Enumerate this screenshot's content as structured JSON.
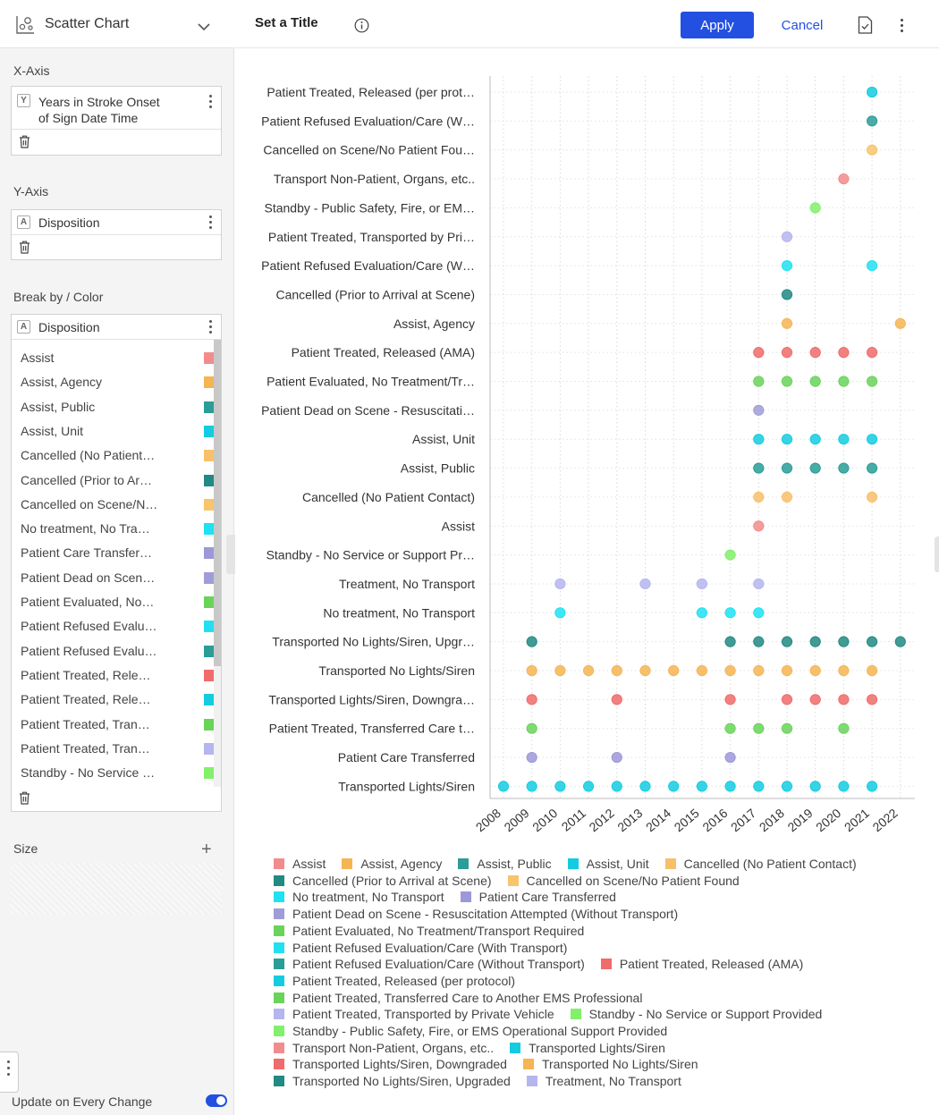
{
  "header": {
    "chart_type": "Scatter Chart",
    "title": "Set a Title",
    "apply_label": "Apply",
    "cancel_label": "Cancel"
  },
  "xaxis_section": {
    "label": "X-Axis",
    "field_line1": "Years in Stroke Onset",
    "field_line2": "of Sign Date Time",
    "badge": "Y"
  },
  "yaxis_section": {
    "label": "Y-Axis",
    "field": "Disposition",
    "badge": "A"
  },
  "color_section": {
    "label": "Break by / Color",
    "field": "Disposition",
    "badge": "A",
    "items": [
      {
        "label": "Assist",
        "color": "#f28c8c"
      },
      {
        "label": "Assist, Agency",
        "color": "#f5b553"
      },
      {
        "label": "Assist, Public",
        "color": "#2a9d97"
      },
      {
        "label": "Assist, Unit",
        "color": "#14cce0"
      },
      {
        "label": "Cancelled (No Patient…",
        "color": "#f8c06b"
      },
      {
        "label": "Cancelled (Prior to Ar…",
        "color": "#218a82"
      },
      {
        "label": "Cancelled on Scene/N…",
        "color": "#f8c46c"
      },
      {
        "label": "No treatment, No Tra…",
        "color": "#1ee2f2"
      },
      {
        "label": "Patient Care Transfer…",
        "color": "#9d98d8"
      },
      {
        "label": "Patient Dead on Scen…",
        "color": "#a09cd8"
      },
      {
        "label": "Patient Evaluated, No…",
        "color": "#6ad35a"
      },
      {
        "label": "Patient Refused Evalu…",
        "color": "#22e0f0"
      },
      {
        "label": "Patient Refused Evalu…",
        "color": "#2a9d97"
      },
      {
        "label": "Patient Treated, Rele…",
        "color": "#f06b6b"
      },
      {
        "label": "Patient Treated, Rele…",
        "color": "#14cce0"
      },
      {
        "label": "Patient Treated, Tran…",
        "color": "#6ad35a"
      },
      {
        "label": "Patient Treated, Tran…",
        "color": "#b5b5f0"
      },
      {
        "label": "Standby - No Service …",
        "color": "#82f06b"
      }
    ]
  },
  "size_section": {
    "label": "Size"
  },
  "footer": {
    "update_label": "Update on Every Change",
    "update_on": true
  },
  "chart_data": {
    "type": "scatter",
    "title": "",
    "xlabel": "",
    "ylabel": "",
    "x_ticks": [
      2008,
      2009,
      2010,
      2011,
      2012,
      2013,
      2014,
      2015,
      2016,
      2017,
      2018,
      2019,
      2020,
      2021,
      2022
    ],
    "xlim": [
      2008,
      2022
    ],
    "grid": "dotted",
    "legend_position": "bottom",
    "categories": [
      "Patient Treated, Released (per prot…",
      "Patient Refused Evaluation/Care (W…",
      "Cancelled on Scene/No Patient Fou…",
      "Transport Non-Patient, Organs, etc..",
      "Standby - Public Safety, Fire, or EM…",
      "Patient Treated, Transported by Pri…",
      "Patient Refused Evaluation/Care (W…",
      "Cancelled (Prior to Arrival at Scene)",
      "Assist, Agency",
      "Patient Treated, Released (AMA)",
      "Patient Evaluated, No Treatment/Tr…",
      "Patient Dead on Scene - Resuscitati…",
      "Assist, Unit",
      "Assist, Public",
      "Cancelled (No Patient Contact)",
      "Assist",
      "Standby - No Service or Support Pr…",
      "Treatment, No Transport",
      "No treatment, No Transport",
      "Transported No Lights/Siren, Upgr…",
      "Transported No Lights/Siren",
      "Transported Lights/Siren, Downgra…",
      "Patient Treated, Transferred Care t…",
      "Patient Care Transferred",
      "Transported Lights/Siren"
    ],
    "series": [
      {
        "name": "Patient Treated, Released (per protocol)",
        "color": "#14cce0",
        "points": [
          2021
        ]
      },
      {
        "name": "Patient Refused Evaluation/Care (Without Transport)",
        "color": "#2a9d97",
        "points": [
          2021
        ]
      },
      {
        "name": "Cancelled on Scene/No Patient Found",
        "color": "#f8c46c",
        "points": [
          2021
        ]
      },
      {
        "name": "Transport Non-Patient, Organs, etc..",
        "color": "#f28c8c",
        "points": [
          2020
        ]
      },
      {
        "name": "Standby - Public Safety, Fire, or EMS Operational Support Provided",
        "color": "#82f06b",
        "points": [
          2019
        ]
      },
      {
        "name": "Patient Treated, Transported by Private Vehicle",
        "color": "#b5b5f0",
        "points": [
          2018
        ]
      },
      {
        "name": "Patient Refused Evaluation/Care (With Transport)",
        "color": "#22e0f0",
        "points": [
          2018,
          2021
        ]
      },
      {
        "name": "Cancelled (Prior to Arrival at Scene)",
        "color": "#218a82",
        "points": [
          2018
        ]
      },
      {
        "name": "Assist, Agency",
        "color": "#f5b553",
        "points": [
          2018,
          2022
        ]
      },
      {
        "name": "Patient Treated, Released (AMA)",
        "color": "#f06b6b",
        "points": [
          2017,
          2018,
          2019,
          2020,
          2021
        ]
      },
      {
        "name": "Patient Evaluated, No Treatment/Transport Required",
        "color": "#6ad35a",
        "points": [
          2017,
          2018,
          2019,
          2020,
          2021
        ]
      },
      {
        "name": "Patient Dead on Scene - Resuscitation Attempted (Without Transport)",
        "color": "#a09cd8",
        "points": [
          2017
        ]
      },
      {
        "name": "Assist, Unit",
        "color": "#14cce0",
        "points": [
          2017,
          2018,
          2019,
          2020,
          2021
        ]
      },
      {
        "name": "Assist, Public",
        "color": "#2a9d97",
        "points": [
          2017,
          2018,
          2019,
          2020,
          2021
        ]
      },
      {
        "name": "Cancelled (No Patient Contact)",
        "color": "#f8c06b",
        "points": [
          2017,
          2018,
          2021
        ]
      },
      {
        "name": "Assist",
        "color": "#f28c8c",
        "points": [
          2017
        ]
      },
      {
        "name": "Standby - No Service or Support Provided",
        "color": "#82f06b",
        "points": [
          2016
        ]
      },
      {
        "name": "Treatment, No Transport",
        "color": "#b5b5f0",
        "points": [
          2010,
          2013,
          2015,
          2017
        ]
      },
      {
        "name": "No treatment, No Transport",
        "color": "#1ee2f2",
        "points": [
          2010,
          2015,
          2016,
          2017
        ]
      },
      {
        "name": "Transported No Lights/Siren, Upgraded",
        "color": "#218a82",
        "points": [
          2009,
          2016,
          2017,
          2018,
          2019,
          2020,
          2021,
          2022
        ]
      },
      {
        "name": "Transported No Lights/Siren",
        "color": "#f5b553",
        "points": [
          2009,
          2010,
          2011,
          2012,
          2013,
          2014,
          2015,
          2016,
          2017,
          2018,
          2019,
          2020,
          2021
        ]
      },
      {
        "name": "Transported Lights/Siren, Downgraded",
        "color": "#f06b6b",
        "points": [
          2009,
          2012,
          2016,
          2018,
          2019,
          2020,
          2021
        ]
      },
      {
        "name": "Patient Treated, Transferred Care to Another EMS Professional",
        "color": "#6ad35a",
        "points": [
          2009,
          2016,
          2017,
          2018,
          2020
        ]
      },
      {
        "name": "Patient Care Transferred",
        "color": "#9d98d8",
        "points": [
          2009,
          2012,
          2016
        ]
      },
      {
        "name": "Transported Lights/Siren",
        "color": "#14cce0",
        "points": [
          2008,
          2009,
          2010,
          2011,
          2012,
          2013,
          2014,
          2015,
          2016,
          2017,
          2018,
          2019,
          2020,
          2021
        ]
      }
    ],
    "legend": [
      [
        {
          "label": "Assist",
          "color": "#f28c8c"
        },
        {
          "label": "Assist, Agency",
          "color": "#f5b553"
        },
        {
          "label": "Assist, Public",
          "color": "#2a9d97"
        },
        {
          "label": "Assist, Unit",
          "color": "#14cce0"
        },
        {
          "label": "Cancelled (No Patient Contact)",
          "color": "#f8c06b"
        }
      ],
      [
        {
          "label": "Cancelled (Prior to Arrival at Scene)",
          "color": "#218a82"
        },
        {
          "label": "Cancelled on Scene/No Patient Found",
          "color": "#f8c46c"
        }
      ],
      [
        {
          "label": "No treatment, No Transport",
          "color": "#1ee2f2"
        },
        {
          "label": "Patient Care Transferred",
          "color": "#9d98d8"
        }
      ],
      [
        {
          "label": "Patient Dead on Scene - Resuscitation Attempted (Without Transport)",
          "color": "#a09cd8"
        }
      ],
      [
        {
          "label": "Patient Evaluated, No Treatment/Transport Required",
          "color": "#6ad35a"
        }
      ],
      [
        {
          "label": "Patient Refused Evaluation/Care (With Transport)",
          "color": "#22e0f0"
        }
      ],
      [
        {
          "label": "Patient Refused Evaluation/Care (Without Transport)",
          "color": "#2a9d97"
        },
        {
          "label": "Patient Treated, Released (AMA)",
          "color": "#f06b6b"
        }
      ],
      [
        {
          "label": "Patient Treated, Released (per protocol)",
          "color": "#14cce0"
        }
      ],
      [
        {
          "label": "Patient Treated, Transferred Care to Another EMS Professional",
          "color": "#6ad35a"
        }
      ],
      [
        {
          "label": "Patient Treated, Transported by Private Vehicle",
          "color": "#b5b5f0"
        },
        {
          "label": "Standby - No Service or Support Provided",
          "color": "#82f06b"
        }
      ],
      [
        {
          "label": "Standby - Public Safety, Fire, or EMS Operational Support Provided",
          "color": "#82f06b"
        }
      ],
      [
        {
          "label": "Transport Non-Patient, Organs, etc..",
          "color": "#f28c8c"
        },
        {
          "label": "Transported Lights/Siren",
          "color": "#14cce0"
        }
      ],
      [
        {
          "label": "Transported Lights/Siren, Downgraded",
          "color": "#f06b6b"
        },
        {
          "label": "Transported No Lights/Siren",
          "color": "#f5b553"
        }
      ],
      [
        {
          "label": "Transported No Lights/Siren, Upgraded",
          "color": "#218a82"
        },
        {
          "label": "Treatment, No Transport",
          "color": "#b5b5f0"
        }
      ]
    ]
  }
}
